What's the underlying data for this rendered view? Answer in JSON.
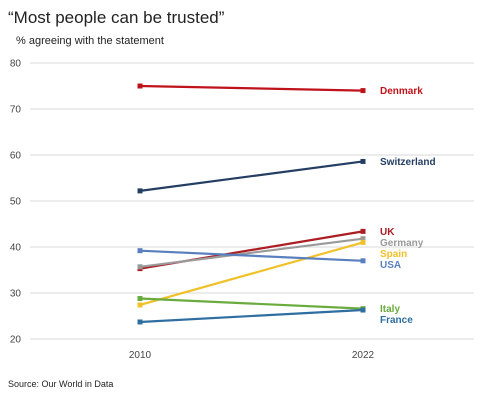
{
  "chart_data": {
    "type": "line",
    "title": "“Most people can be trusted”",
    "subtitle": "% agreeing with the statement",
    "x": [
      "2010",
      "2022"
    ],
    "ylim": [
      20,
      80
    ],
    "yticks": [
      "20",
      "30",
      "40",
      "50",
      "60",
      "70",
      "80"
    ],
    "grid": true,
    "legend": "direct labels at right",
    "series": [
      {
        "name": "Denmark",
        "values": [
          75.0,
          74.0
        ],
        "color": "#c0121b"
      },
      {
        "name": "Switzerland",
        "values": [
          52.2,
          58.6
        ],
        "color": "#243e63"
      },
      {
        "name": "UK",
        "values": [
          35.3,
          43.4
        ],
        "color": "#ab1e24"
      },
      {
        "name": "Germany",
        "values": [
          35.7,
          41.8
        ],
        "color": "#9a9a9a"
      },
      {
        "name": "Spain",
        "values": [
          27.4,
          41.0
        ],
        "color": "#f0c12a"
      },
      {
        "name": "USA",
        "values": [
          39.2,
          37.0
        ],
        "color": "#5a7fbf"
      },
      {
        "name": "Italy",
        "values": [
          28.8,
          26.6
        ],
        "color": "#6aab3e"
      },
      {
        "name": "France",
        "values": [
          23.7,
          26.3
        ],
        "color": "#2e6ea1"
      }
    ],
    "source": "Source: Our World in Data"
  }
}
